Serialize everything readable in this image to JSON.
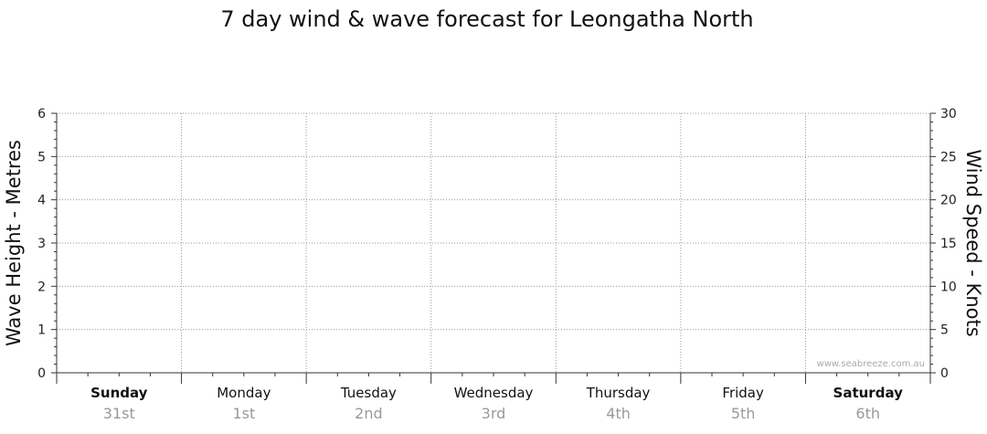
{
  "chart_data": {
    "type": "line",
    "title": "7 day wind & wave forecast for Leongatha North",
    "ylabel_left": "Wave Height - Metres",
    "ylabel_right": "Wind Speed - Knots",
    "ylim_left": [
      0,
      6
    ],
    "ylim_right": [
      0,
      30
    ],
    "yticks_left": [
      "0",
      "1",
      "2",
      "3",
      "4",
      "5",
      "6"
    ],
    "yticks_right": [
      "0",
      "5",
      "10",
      "15",
      "20",
      "25",
      "30"
    ],
    "days": [
      {
        "name": "Sunday",
        "date": "31st",
        "bold": true
      },
      {
        "name": "Monday",
        "date": "1st",
        "bold": false
      },
      {
        "name": "Tuesday",
        "date": "2nd",
        "bold": false
      },
      {
        "name": "Wednesday",
        "date": "3rd",
        "bold": false
      },
      {
        "name": "Thursday",
        "date": "4th",
        "bold": false
      },
      {
        "name": "Friday",
        "date": "5th",
        "bold": false
      },
      {
        "name": "Saturday",
        "date": "6th",
        "bold": true
      }
    ],
    "series": [],
    "grid": true,
    "watermark": "www.seabreeze.com.au"
  }
}
